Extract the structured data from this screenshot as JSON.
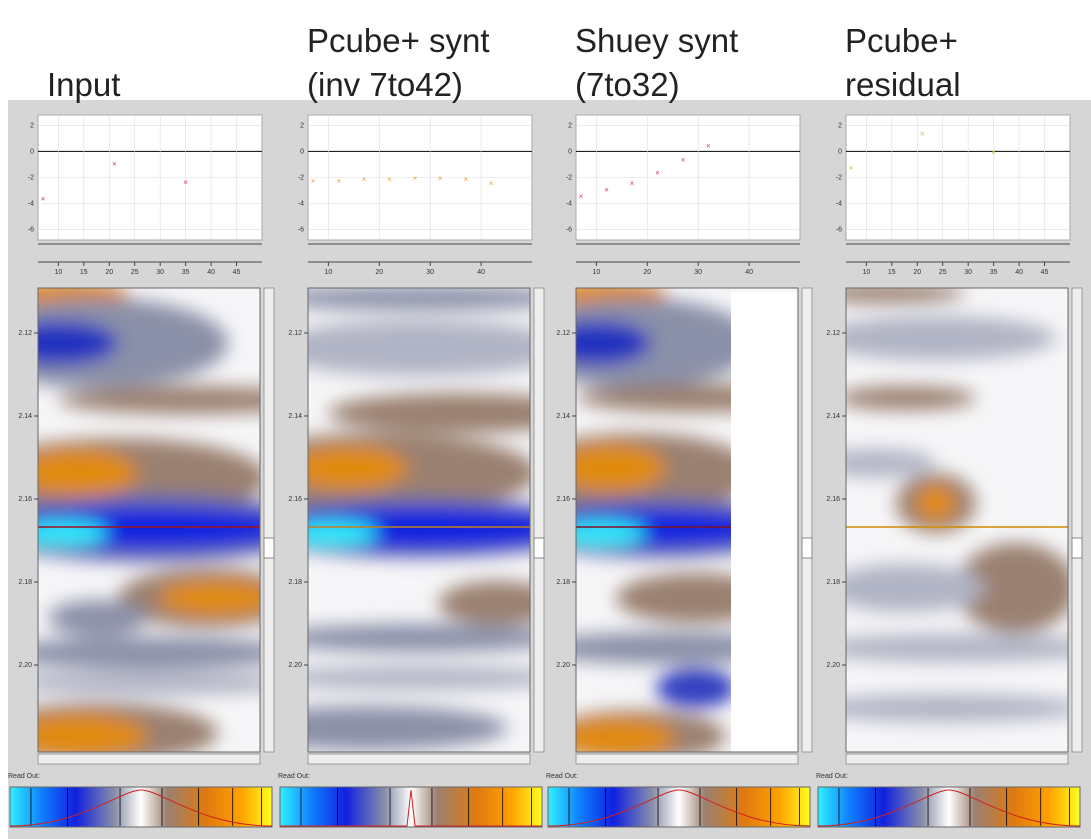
{
  "panels": [
    {
      "title": [
        "Input"
      ],
      "point_color": "#d0406a",
      "scatter": {
        "xlim": [
          6,
          50
        ],
        "ylim": [
          -6.8,
          2.8
        ],
        "yticks": [
          2,
          0,
          -2,
          -4,
          -6
        ],
        "xticks": [
          10,
          15,
          20,
          25,
          30,
          35,
          40,
          45
        ],
        "points": [
          {
            "x": 7,
            "y": -3.7
          },
          {
            "x": 21,
            "y": -1
          },
          {
            "x": 35,
            "y": -2.4
          }
        ]
      },
      "depth_ticks": [
        "2.12",
        "2.14",
        "2.16",
        "2.18",
        "2.20"
      ],
      "readout": "Read Out:"
    },
    {
      "title": [
        "Pcube+ synt",
        "(inv 7to42)"
      ],
      "point_color": "#e8a040",
      "scatter": {
        "xlim": [
          6,
          50
        ],
        "ylim": [
          -6.8,
          2.8
        ],
        "yticks": [
          2,
          0,
          -2,
          -4,
          -6
        ],
        "xticks": [
          10,
          20,
          30,
          40
        ],
        "points": [
          {
            "x": 7,
            "y": -2.3
          },
          {
            "x": 12,
            "y": -2.3
          },
          {
            "x": 17,
            "y": -2.2
          },
          {
            "x": 22,
            "y": -2.2
          },
          {
            "x": 27,
            "y": -2.1
          },
          {
            "x": 32,
            "y": -2.1
          },
          {
            "x": 37,
            "y": -2.2
          },
          {
            "x": 42,
            "y": -2.5
          }
        ]
      },
      "depth_ticks": [
        "2.12",
        "2.14",
        "2.16",
        "2.18",
        "2.20"
      ],
      "readout": "Read Out:"
    },
    {
      "title": [
        "Shuey synt",
        "(7to32)"
      ],
      "point_color": "#d0406a",
      "scatter": {
        "xlim": [
          6,
          50
        ],
        "ylim": [
          -6.8,
          2.8
        ],
        "yticks": [
          2,
          0,
          -2,
          -4,
          -6
        ],
        "xticks": [
          10,
          20,
          30,
          40
        ],
        "points": [
          {
            "x": 7,
            "y": -3.5
          },
          {
            "x": 12,
            "y": -3
          },
          {
            "x": 17,
            "y": -2.5
          },
          {
            "x": 22,
            "y": -1.7
          },
          {
            "x": 27,
            "y": -0.7
          },
          {
            "x": 32,
            "y": 0.4
          }
        ]
      },
      "depth_ticks": [
        "2.12",
        "2.14",
        "2.16",
        "2.18",
        "2.20"
      ],
      "readout": "Read Out:"
    },
    {
      "title": [
        "Pcube+",
        "residual"
      ],
      "point_color": "#c8c040",
      "scatter": {
        "xlim": [
          6,
          50
        ],
        "ylim": [
          -6.8,
          2.8
        ],
        "yticks": [
          2,
          0,
          -2,
          -4,
          -6
        ],
        "xticks": [
          10,
          15,
          20,
          25,
          30,
          35,
          40,
          45
        ],
        "points": [
          {
            "x": 7,
            "y": -1.3
          },
          {
            "x": 21,
            "y": 1.3
          },
          {
            "x": 35,
            "y": -0.1
          }
        ]
      },
      "depth_ticks": [
        "2.12",
        "2.14",
        "2.16",
        "2.18",
        "2.20"
      ],
      "readout": "Read Out:"
    }
  ]
}
